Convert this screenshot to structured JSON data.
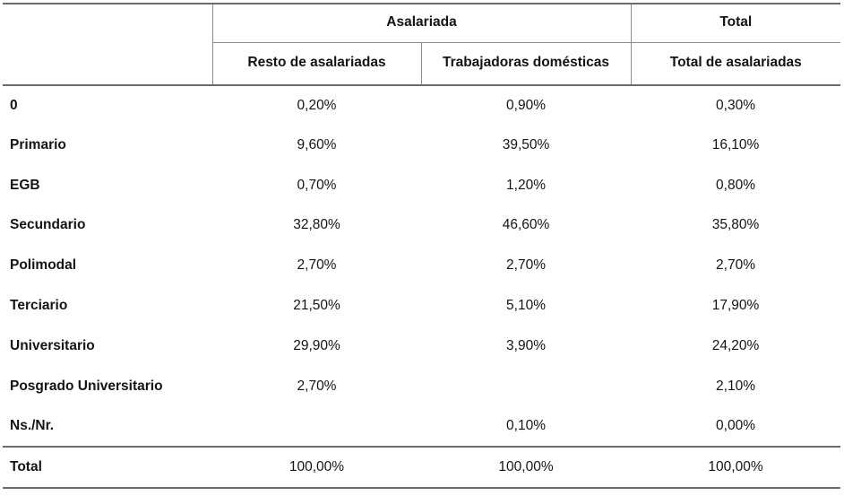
{
  "table": {
    "header": {
      "corner": "",
      "group_asalariada": "Asalariada",
      "group_total": "Total",
      "sub_resto": "Resto de asalariadas",
      "sub_domesticas": "Trabajadoras domésticas",
      "sub_total": "Total de asalariadas"
    },
    "rows": [
      {
        "label": "0",
        "resto": "0,20%",
        "domesticas": "0,90%",
        "total": "0,30%"
      },
      {
        "label": "Primario",
        "resto": "9,60%",
        "domesticas": "39,50%",
        "total": "16,10%"
      },
      {
        "label": "EGB",
        "resto": "0,70%",
        "domesticas": "1,20%",
        "total": "0,80%"
      },
      {
        "label": "Secundario",
        "resto": "32,80%",
        "domesticas": "46,60%",
        "total": "35,80%"
      },
      {
        "label": "Polimodal",
        "resto": "2,70%",
        "domesticas": "2,70%",
        "total": "2,70%"
      },
      {
        "label": "Terciario",
        "resto": "21,50%",
        "domesticas": "5,10%",
        "total": "17,90%"
      },
      {
        "label": "Universitario",
        "resto": "29,90%",
        "domesticas": "3,90%",
        "total": "24,20%"
      },
      {
        "label": "Posgrado Universitario",
        "resto": "2,70%",
        "domesticas": "",
        "total": "2,10%"
      },
      {
        "label": "Ns./Nr.",
        "resto": "",
        "domesticas": "0,10%",
        "total": "0,00%"
      },
      {
        "label": "Total",
        "resto": "100,00%",
        "domesticas": "100,00%",
        "total": "100,00%"
      }
    ]
  },
  "colors": {
    "rule_heavy": "#6b6b6b",
    "rule_light": "#8c8c8c",
    "text": "#141414",
    "background": "#ffffff"
  },
  "chart_data": {
    "type": "table",
    "title": "",
    "column_groups": [
      {
        "label": "Asalariada",
        "columns": [
          "Resto de asalariadas",
          "Trabajadoras domésticas"
        ]
      },
      {
        "label": "Total",
        "columns": [
          "Total de asalariadas"
        ]
      }
    ],
    "columns": [
      "",
      "Resto de asalariadas",
      "Trabajadoras domésticas",
      "Total de asalariadas"
    ],
    "rows": [
      [
        "0",
        "0,20%",
        "0,90%",
        "0,30%"
      ],
      [
        "Primario",
        "9,60%",
        "39,50%",
        "16,10%"
      ],
      [
        "EGB",
        "0,70%",
        "1,20%",
        "0,80%"
      ],
      [
        "Secundario",
        "32,80%",
        "46,60%",
        "35,80%"
      ],
      [
        "Polimodal",
        "2,70%",
        "2,70%",
        "2,70%"
      ],
      [
        "Terciario",
        "21,50%",
        "5,10%",
        "17,90%"
      ],
      [
        "Universitario",
        "29,90%",
        "3,90%",
        "24,20%"
      ],
      [
        "Posgrado Universitario",
        "2,70%",
        "",
        "2,10%"
      ],
      [
        "Ns./Nr.",
        "",
        "0,10%",
        "0,00%"
      ],
      [
        "Total",
        "100,00%",
        "100,00%",
        "100,00%"
      ]
    ],
    "values_numeric_pct": {
      "Resto de asalariadas": [
        0.2,
        9.6,
        0.7,
        32.8,
        2.7,
        21.5,
        29.9,
        2.7,
        null,
        100.0
      ],
      "Trabajadoras domésticas": [
        0.9,
        39.5,
        1.2,
        46.6,
        2.7,
        5.1,
        3.9,
        null,
        0.1,
        100.0
      ],
      "Total de asalariadas": [
        0.3,
        16.1,
        0.8,
        35.8,
        2.7,
        17.9,
        24.2,
        2.1,
        0.0,
        100.0
      ]
    }
  }
}
